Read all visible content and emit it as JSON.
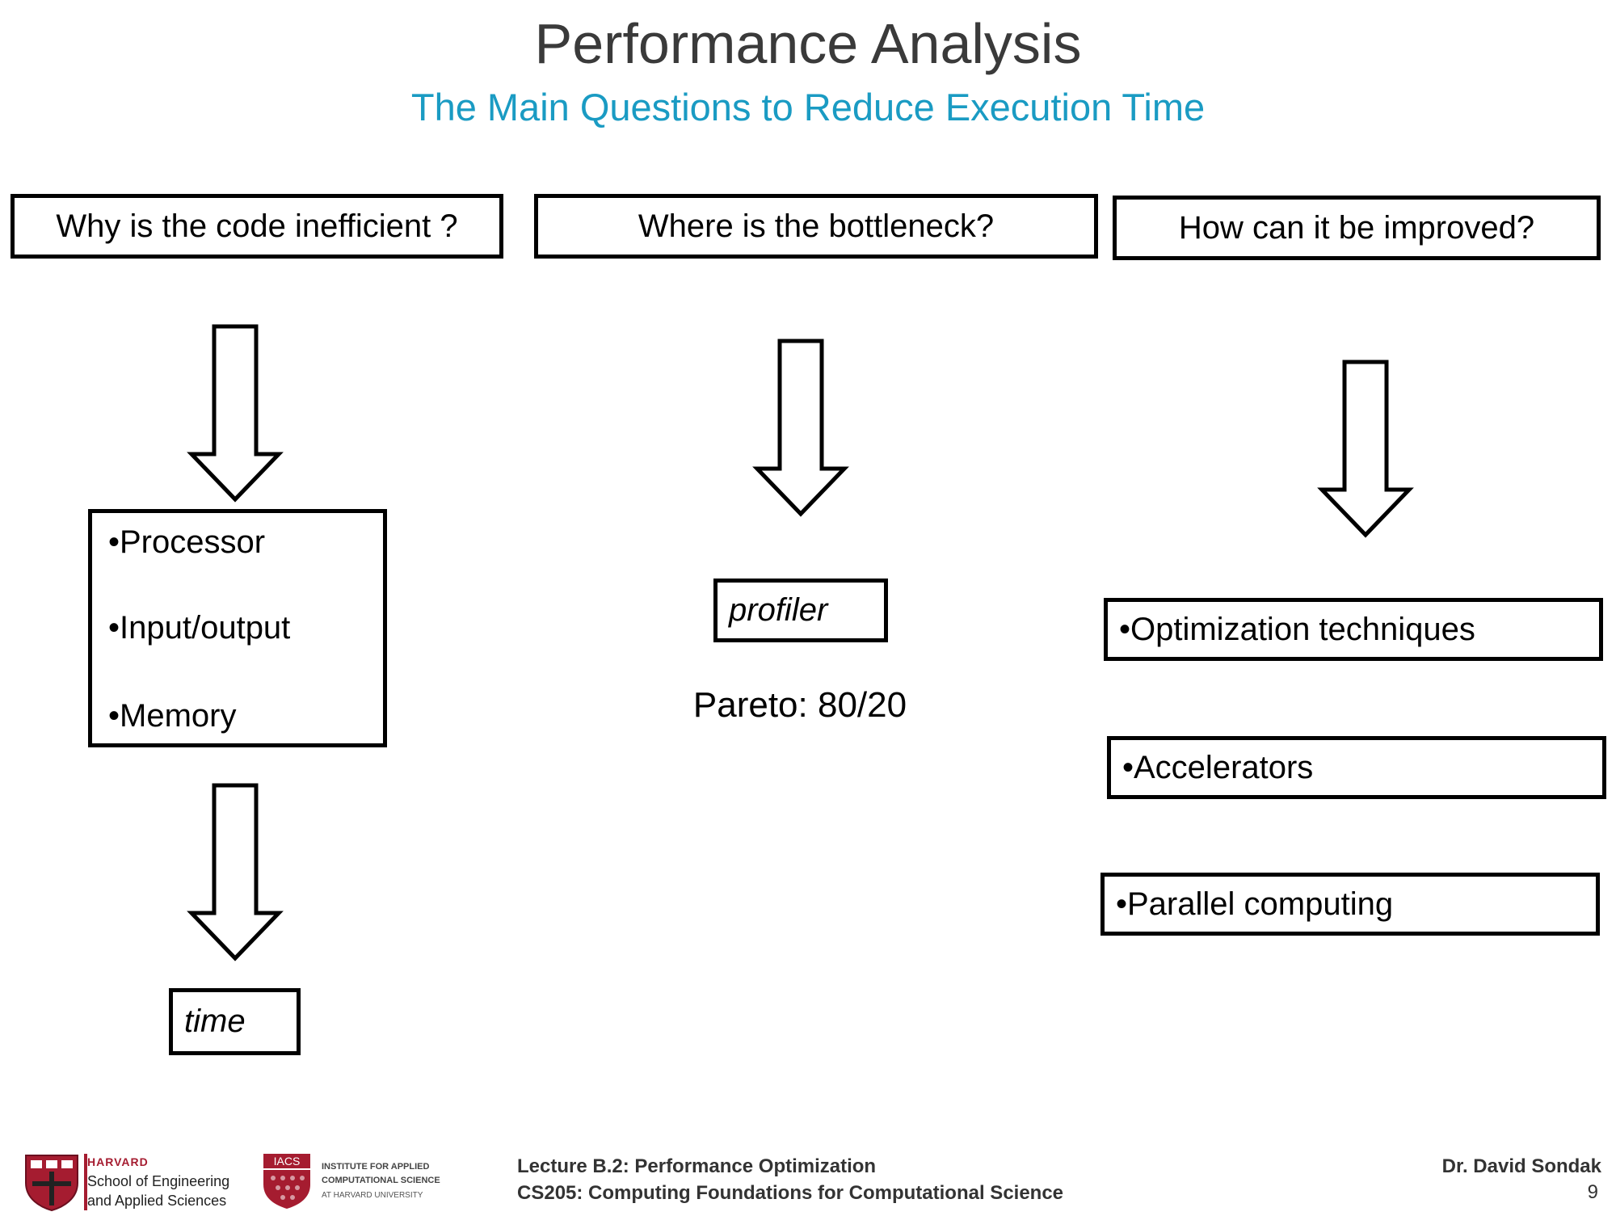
{
  "slide": {
    "title": "Performance Analysis",
    "subtitle": "The Main Questions to Reduce Execution Time",
    "page_number": "9"
  },
  "columns": {
    "why": {
      "question": "Why is the code inefficient ?",
      "items": [
        "•Processor",
        "•Input/output",
        "•Memory"
      ],
      "result": "time"
    },
    "where": {
      "question": "Where is the bottleneck?",
      "tool": "profiler",
      "note": "Pareto: 80/20"
    },
    "how": {
      "question": "How can it be improved?",
      "items": [
        "•Optimization techniques",
        "•Accelerators",
        "•Parallel computing"
      ]
    }
  },
  "footer": {
    "lecture": "Lecture B.2: Performance Optimization",
    "course": "CS205: Computing Foundations for Computational Science",
    "author": "Dr. David Sondak",
    "harvard_logo": {
      "line1": "HARVARD",
      "line2": "School of Engineering",
      "line3": "and Applied Sciences"
    },
    "iacs_logo": {
      "badge": "IACS",
      "line1": "INSTITUTE FOR APPLIED",
      "line2": "COMPUTATIONAL SCIENCE",
      "line3": "AT HARVARD UNIVERSITY"
    }
  },
  "colors": {
    "title": "#3a3a3a",
    "subtitle": "#1a9bc3",
    "harvard_red": "#a51c30"
  }
}
